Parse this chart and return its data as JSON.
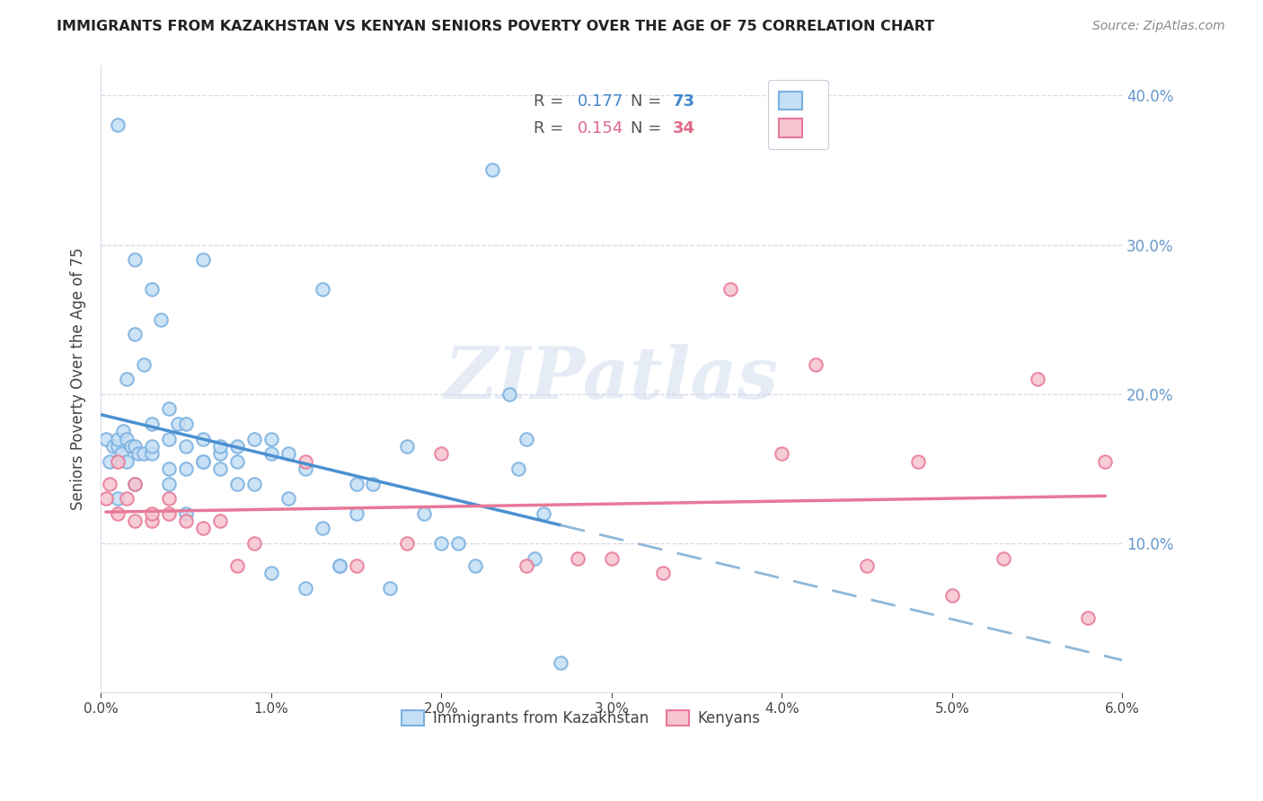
{
  "title": "IMMIGRANTS FROM KAZAKHSTAN VS KENYAN SENIORS POVERTY OVER THE AGE OF 75 CORRELATION CHART",
  "source": "Source: ZipAtlas.com",
  "ylabel": "Seniors Poverty Over the Age of 75",
  "xlim": [
    0.0,
    0.06
  ],
  "ylim": [
    0.0,
    0.42
  ],
  "xticks": [
    0.0,
    0.01,
    0.02,
    0.03,
    0.04,
    0.05,
    0.06
  ],
  "xticklabels": [
    "0.0%",
    "1.0%",
    "2.0%",
    "3.0%",
    "4.0%",
    "5.0%",
    "6.0%"
  ],
  "yticks_right": [
    0.1,
    0.2,
    0.3,
    0.4
  ],
  "yticklabels_right": [
    "10.0%",
    "20.0%",
    "30.0%",
    "40.0%"
  ],
  "blue_scatter_color_face": "#c5dff5",
  "blue_scatter_color_edge": "#7ab0e0",
  "pink_scatter_color_face": "#f5c5d0",
  "pink_scatter_color_edge": "#e87898",
  "blue_line_color": "#4a90d0",
  "blue_dash_color": "#90b8d8",
  "pink_line_color": "#e87898",
  "right_tick_color": "#6699cc",
  "grid_color": "#d8d8e8",
  "watermark_text": "ZIPatlas",
  "watermark_color": "#ccdaec",
  "kaz_R": "0.177",
  "kaz_N": "73",
  "ken_R": "0.154",
  "ken_N": "34",
  "kaz_x": [
    0.0003,
    0.0005,
    0.0007,
    0.001,
    0.001,
    0.001,
    0.001,
    0.0012,
    0.0013,
    0.0015,
    0.0015,
    0.0015,
    0.0018,
    0.002,
    0.002,
    0.002,
    0.002,
    0.0022,
    0.0025,
    0.0025,
    0.003,
    0.003,
    0.003,
    0.003,
    0.0035,
    0.004,
    0.004,
    0.004,
    0.004,
    0.0045,
    0.005,
    0.005,
    0.005,
    0.005,
    0.006,
    0.006,
    0.006,
    0.006,
    0.007,
    0.007,
    0.007,
    0.008,
    0.008,
    0.008,
    0.009,
    0.009,
    0.01,
    0.01,
    0.01,
    0.011,
    0.011,
    0.012,
    0.012,
    0.013,
    0.013,
    0.014,
    0.014,
    0.015,
    0.015,
    0.016,
    0.017,
    0.018,
    0.019,
    0.02,
    0.021,
    0.022,
    0.023,
    0.024,
    0.0245,
    0.025,
    0.0255,
    0.026,
    0.027
  ],
  "kaz_y": [
    0.17,
    0.155,
    0.165,
    0.38,
    0.13,
    0.165,
    0.17,
    0.16,
    0.175,
    0.17,
    0.155,
    0.21,
    0.165,
    0.29,
    0.24,
    0.165,
    0.14,
    0.16,
    0.22,
    0.16,
    0.18,
    0.16,
    0.27,
    0.165,
    0.25,
    0.19,
    0.17,
    0.15,
    0.14,
    0.18,
    0.18,
    0.165,
    0.15,
    0.12,
    0.155,
    0.17,
    0.155,
    0.29,
    0.16,
    0.15,
    0.165,
    0.155,
    0.14,
    0.165,
    0.17,
    0.14,
    0.17,
    0.16,
    0.08,
    0.16,
    0.13,
    0.15,
    0.07,
    0.27,
    0.11,
    0.085,
    0.085,
    0.12,
    0.14,
    0.14,
    0.07,
    0.165,
    0.12,
    0.1,
    0.1,
    0.085,
    0.35,
    0.2,
    0.15,
    0.17,
    0.09,
    0.12,
    0.02
  ],
  "ken_x": [
    0.0003,
    0.0005,
    0.001,
    0.001,
    0.0015,
    0.002,
    0.002,
    0.003,
    0.003,
    0.004,
    0.004,
    0.005,
    0.006,
    0.007,
    0.008,
    0.009,
    0.012,
    0.015,
    0.018,
    0.02,
    0.025,
    0.028,
    0.03,
    0.033,
    0.037,
    0.04,
    0.042,
    0.045,
    0.048,
    0.05,
    0.053,
    0.055,
    0.058,
    0.059
  ],
  "ken_y": [
    0.13,
    0.14,
    0.155,
    0.12,
    0.13,
    0.115,
    0.14,
    0.115,
    0.12,
    0.13,
    0.12,
    0.115,
    0.11,
    0.115,
    0.085,
    0.1,
    0.155,
    0.085,
    0.1,
    0.16,
    0.085,
    0.09,
    0.09,
    0.08,
    0.27,
    0.16,
    0.22,
    0.085,
    0.155,
    0.065,
    0.09,
    0.21,
    0.05,
    0.155
  ]
}
